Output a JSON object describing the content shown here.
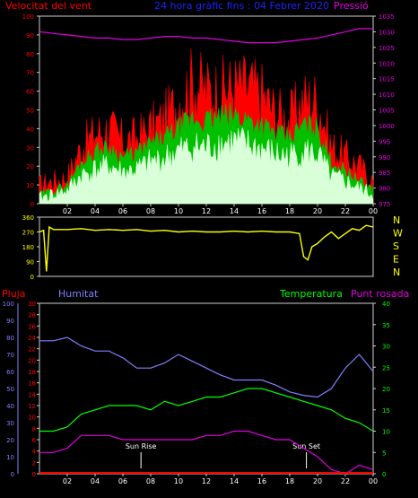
{
  "header": {
    "wind_label": "Velocitat del vent",
    "title": "24 hora gràfic fins : 04 Febrer 2020",
    "pressure_label": "Pressió"
  },
  "lower_header": {
    "rain_label": "Pluja",
    "humidity_label": "Humitat",
    "temperature_label": "Temperatura",
    "dewpoint_label": "Punt rosada"
  },
  "colors": {
    "wind_gust": "#ff0000",
    "wind_avg": "#00c000",
    "wind_speed": "#d8ffd8",
    "pressure": "#e000e0",
    "direction": "#ffff00",
    "humidity": "#8080ff",
    "temperature": "#00ff00",
    "dewpoint": "#e000e0",
    "rain": "#ff0000",
    "axis_rain": "#ff0000",
    "axis_humidity": "#8080ff",
    "axis_temp": "#00ff00"
  },
  "chart_data": [
    {
      "type": "line",
      "name": "wind",
      "x_ticks": [
        "02",
        "04",
        "06",
        "08",
        "10",
        "12",
        "14",
        "16",
        "18",
        "20",
        "22",
        "00"
      ],
      "y_left_ticks": [
        "0",
        "10",
        "20",
        "30",
        "40",
        "50",
        "60",
        "70",
        "80",
        "90",
        "100"
      ],
      "y_right_ticks": [
        "975",
        "980",
        "985",
        "990",
        "995",
        "1000",
        "1005",
        "1010",
        "1015",
        "1020",
        "1025",
        "1030",
        "1035"
      ],
      "ylim_left": [
        0,
        100
      ],
      "ylim_right": [
        975,
        1035
      ],
      "x": [
        0,
        1,
        2,
        3,
        4,
        5,
        6,
        7,
        8,
        9,
        10,
        11,
        12,
        13,
        14,
        15,
        16,
        17,
        18,
        19,
        20,
        21,
        22,
        23,
        24
      ],
      "series": [
        {
          "name": "Pressió",
          "values": [
            1030,
            1029.5,
            1029,
            1028.5,
            1028,
            1028,
            1027.5,
            1027.5,
            1028,
            1028.5,
            1028.5,
            1028,
            1028,
            1027.5,
            1027,
            1026.5,
            1026.5,
            1026.5,
            1027,
            1027.5,
            1028,
            1029,
            1030,
            1031,
            1031
          ]
        },
        {
          "name": "gust",
          "values": [
            10,
            12,
            14,
            30,
            37,
            40,
            33,
            35,
            40,
            45,
            55,
            65,
            60,
            60,
            62,
            62,
            58,
            48,
            45,
            55,
            55,
            30,
            25,
            20,
            12
          ]
        },
        {
          "name": "average",
          "values": [
            5,
            7,
            10,
            22,
            28,
            30,
            25,
            27,
            32,
            35,
            40,
            45,
            44,
            46,
            47,
            45,
            42,
            37,
            35,
            42,
            40,
            22,
            18,
            12,
            8
          ]
        },
        {
          "name": "speed",
          "values": [
            3,
            5,
            7,
            15,
            18,
            20,
            17,
            18,
            22,
            24,
            28,
            30,
            30,
            32,
            33,
            31,
            29,
            26,
            25,
            28,
            26,
            14,
            12,
            8,
            5
          ]
        }
      ]
    },
    {
      "type": "line",
      "name": "direction",
      "y_ticks": [
        "0",
        "90",
        "180",
        "270",
        "360"
      ],
      "right_labels": [
        "N",
        "W",
        "S",
        "E",
        "N"
      ],
      "ylim": [
        0,
        360
      ],
      "x": [
        0,
        0.3,
        0.5,
        0.7,
        1,
        2,
        3,
        4,
        5,
        6,
        7,
        8,
        9,
        10,
        11,
        12,
        13,
        14,
        15,
        16,
        17,
        18,
        18.7,
        19,
        19.3,
        19.6,
        20,
        20.5,
        21,
        21.5,
        22,
        22.5,
        23,
        23.5,
        24
      ],
      "values": [
        270,
        280,
        30,
        300,
        285,
        285,
        290,
        280,
        285,
        280,
        285,
        275,
        280,
        270,
        275,
        270,
        270,
        275,
        270,
        275,
        270,
        270,
        260,
        120,
        100,
        180,
        200,
        240,
        270,
        230,
        260,
        290,
        280,
        310,
        300
      ]
    },
    {
      "type": "line",
      "name": "lower",
      "x_ticks": [
        "02",
        "04",
        "06",
        "08",
        "10",
        "12",
        "14",
        "16",
        "18",
        "20",
        "22",
        "00"
      ],
      "y_rain_ticks": [
        "0",
        "2",
        "4",
        "6",
        "8",
        "10",
        "12",
        "14",
        "16",
        "18",
        "20",
        "22",
        "24",
        "26",
        "28",
        "30"
      ],
      "y_humidity_ticks": [
        "0",
        "10",
        "20",
        "30",
        "40",
        "50",
        "60",
        "70",
        "80",
        "90",
        "100"
      ],
      "y_temp_ticks": [
        "0",
        "5",
        "10",
        "15",
        "20",
        "25",
        "30",
        "35",
        "40"
      ],
      "ylim_rain": [
        0,
        30
      ],
      "ylim_humidity": [
        0,
        100
      ],
      "ylim_temp": [
        0,
        40
      ],
      "annotations": [
        "Sun Rise",
        "Sun Set"
      ],
      "sunrise_hour": 7.3,
      "sunset_hour": 19.2,
      "x": [
        0,
        1,
        2,
        3,
        4,
        5,
        6,
        7,
        8,
        9,
        10,
        11,
        12,
        13,
        14,
        15,
        16,
        17,
        18,
        19,
        20,
        21,
        22,
        23,
        24
      ],
      "series": [
        {
          "name": "Humitat",
          "values": [
            78,
            78,
            80,
            75,
            72,
            72,
            68,
            62,
            62,
            65,
            70,
            66,
            62,
            58,
            55,
            55,
            55,
            52,
            48,
            46,
            45,
            50,
            62,
            70,
            60
          ]
        },
        {
          "name": "Temperatura",
          "values": [
            10,
            10,
            11,
            14,
            15,
            16,
            16,
            16,
            15,
            17,
            16,
            17,
            18,
            18,
            19,
            20,
            20,
            19,
            18,
            17,
            16,
            15,
            13,
            12,
            10
          ]
        },
        {
          "name": "Punt rosada",
          "values": [
            5,
            5,
            6,
            9,
            9,
            9,
            8,
            8,
            8,
            8,
            8,
            8,
            9,
            9,
            10,
            10,
            9,
            8,
            8,
            6,
            4,
            1,
            0,
            2,
            1
          ]
        },
        {
          "name": "Pluja",
          "values": [
            0,
            0,
            0,
            0,
            0,
            0,
            0,
            0,
            0,
            0,
            0,
            0,
            0,
            0,
            0,
            0,
            0,
            0,
            0,
            0,
            0,
            0,
            0,
            0,
            0
          ]
        }
      ]
    }
  ]
}
